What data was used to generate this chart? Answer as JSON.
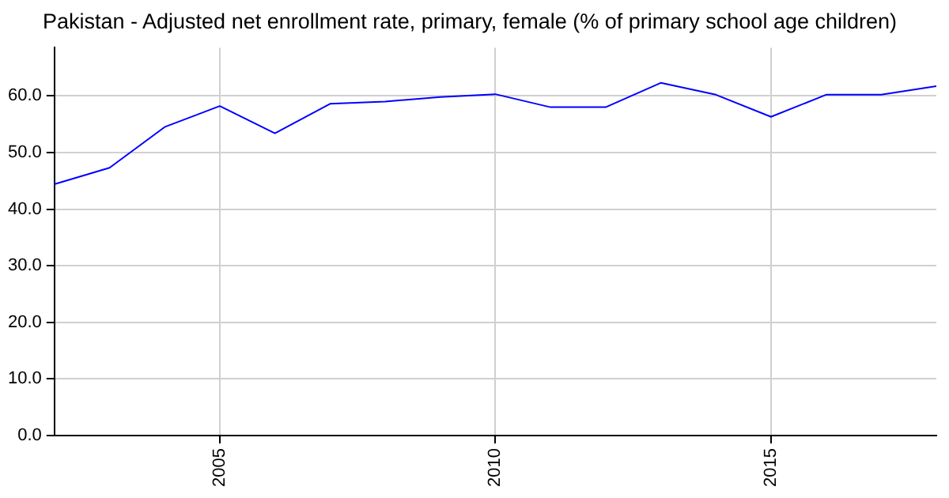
{
  "chart_data": {
    "type": "line",
    "title": "Pakistan - Adjusted net enrollment rate, primary, female (% of primary school age children)",
    "x": [
      2002,
      2003,
      2004,
      2005,
      2006,
      2007,
      2008,
      2009,
      2010,
      2011,
      2012,
      2013,
      2014,
      2015,
      2016,
      2017,
      2018
    ],
    "series": [
      {
        "color": "#0000ff",
        "values": [
          44.4,
          47.3,
          54.5,
          58.2,
          53.4,
          58.6,
          59.0,
          59.8,
          60.3,
          58.0,
          58.0,
          62.3,
          60.2,
          56.3,
          60.2,
          60.2,
          61.7
        ]
      }
    ],
    "xlim": [
      2002,
      2018
    ],
    "xticks": [
      2005,
      2010,
      2015
    ],
    "ylim": [
      0,
      68.5
    ],
    "yticks": [
      {
        "value": 0,
        "label": "0.0"
      },
      {
        "value": 10,
        "label": "10.0"
      },
      {
        "value": 20,
        "label": "20.0"
      },
      {
        "value": 30,
        "label": "30.0"
      },
      {
        "value": 40,
        "label": "40.0"
      },
      {
        "value": 50,
        "label": "50.0"
      },
      {
        "value": 60,
        "label": "60.0"
      }
    ],
    "grid": true,
    "legend": false,
    "marker": "none",
    "line_style": "solid"
  }
}
